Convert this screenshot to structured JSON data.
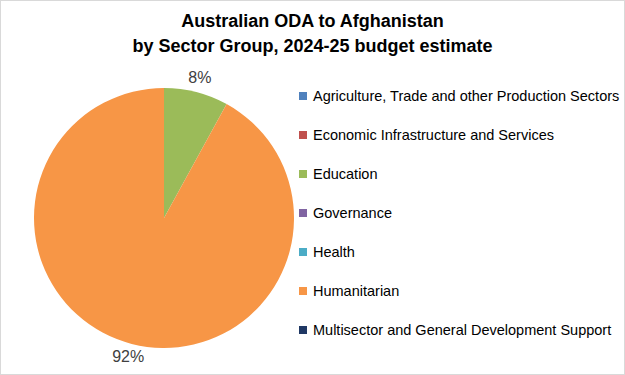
{
  "chart_data": {
    "type": "pie",
    "title": "Australian ODA to Afghanistan\nby Sector Group, 2024-25 budget estimate",
    "categories": [
      "Agriculture, Trade and other Production Sectors",
      "Economic Infrastructure and Services",
      "Education",
      "Governance",
      "Health",
      "Humanitarian",
      "Multisector and General Development Support"
    ],
    "values": [
      0,
      0,
      8,
      0,
      0,
      92,
      0
    ],
    "value_labels": [
      null,
      null,
      "8%",
      null,
      null,
      "92%",
      null
    ],
    "colors": [
      "#4f81bd",
      "#c0504d",
      "#9bbb59",
      "#8064a2",
      "#4bacc6",
      "#f79646",
      "#1f3864"
    ],
    "data_labels": true,
    "legend": "right"
  }
}
